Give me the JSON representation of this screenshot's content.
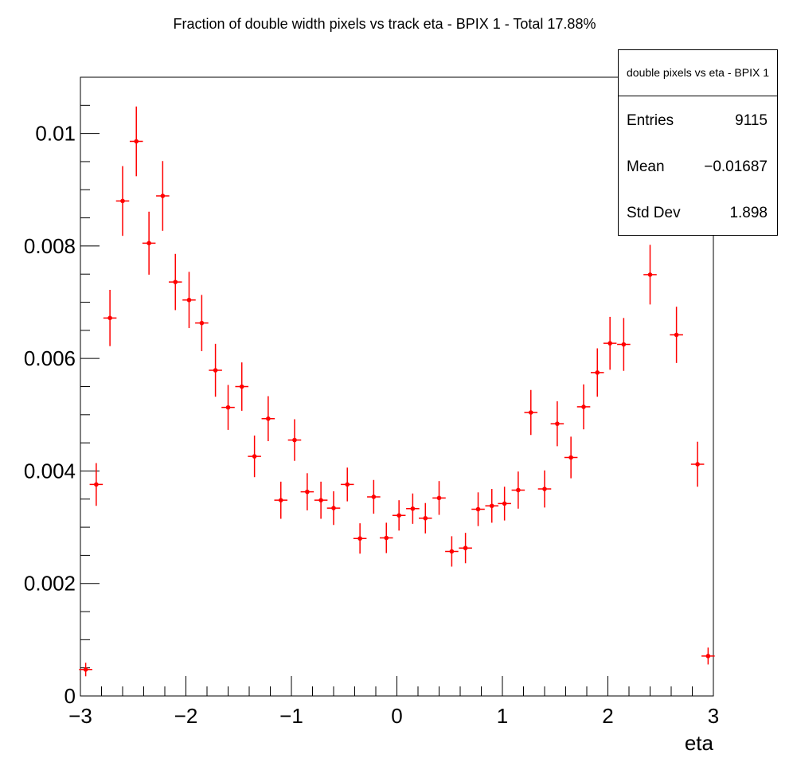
{
  "chart_data": {
    "type": "scatter",
    "title": "Fraction of double width pixels vs track eta - BPIX 1 - Total 17.88%",
    "xlabel": "eta",
    "ylabel": "",
    "xlim": [
      -3,
      3
    ],
    "ylim": [
      0,
      0.011
    ],
    "x_ticks": [
      "−3",
      "−2",
      "−1",
      "0",
      "1",
      "2",
      "3"
    ],
    "y_ticks": [
      "0",
      "0.002",
      "0.004",
      "0.006",
      "0.008",
      "0.01"
    ],
    "series": [
      {
        "color": "#ff0000",
        "points": [
          {
            "x": -2.95,
            "y": 0.00047,
            "err": 0.00012
          },
          {
            "x": -2.85,
            "y": 0.00376,
            "err": 0.00038
          },
          {
            "x": -2.72,
            "y": 0.00672,
            "err": 0.0005
          },
          {
            "x": -2.6,
            "y": 0.0088,
            "err": 0.00062
          },
          {
            "x": -2.47,
            "y": 0.00986,
            "err": 0.00062
          },
          {
            "x": -2.35,
            "y": 0.00805,
            "err": 0.00056
          },
          {
            "x": -2.22,
            "y": 0.00889,
            "err": 0.00062
          },
          {
            "x": -2.1,
            "y": 0.00736,
            "err": 0.0005
          },
          {
            "x": -1.97,
            "y": 0.00704,
            "err": 0.0005
          },
          {
            "x": -1.85,
            "y": 0.00663,
            "err": 0.0005
          },
          {
            "x": -1.72,
            "y": 0.00579,
            "err": 0.00047
          },
          {
            "x": -1.6,
            "y": 0.00513,
            "err": 0.0004
          },
          {
            "x": -1.47,
            "y": 0.0055,
            "err": 0.00043
          },
          {
            "x": -1.35,
            "y": 0.00426,
            "err": 0.00037
          },
          {
            "x": -1.22,
            "y": 0.00493,
            "err": 0.0004
          },
          {
            "x": -1.1,
            "y": 0.00348,
            "err": 0.00033
          },
          {
            "x": -0.97,
            "y": 0.00455,
            "err": 0.00037
          },
          {
            "x": -0.85,
            "y": 0.00363,
            "err": 0.00033
          },
          {
            "x": -0.72,
            "y": 0.00348,
            "err": 0.00033
          },
          {
            "x": -0.6,
            "y": 0.00334,
            "err": 0.0003
          },
          {
            "x": -0.47,
            "y": 0.00376,
            "err": 0.0003
          },
          {
            "x": -0.35,
            "y": 0.0028,
            "err": 0.00027
          },
          {
            "x": -0.22,
            "y": 0.00354,
            "err": 0.0003
          },
          {
            "x": -0.1,
            "y": 0.00281,
            "err": 0.00027
          },
          {
            "x": 0.02,
            "y": 0.00321,
            "err": 0.00027
          },
          {
            "x": 0.15,
            "y": 0.00333,
            "err": 0.00027
          },
          {
            "x": 0.27,
            "y": 0.00316,
            "err": 0.00027
          },
          {
            "x": 0.4,
            "y": 0.00352,
            "err": 0.0003
          },
          {
            "x": 0.52,
            "y": 0.00257,
            "err": 0.00027
          },
          {
            "x": 0.65,
            "y": 0.00263,
            "err": 0.00027
          },
          {
            "x": 0.77,
            "y": 0.00332,
            "err": 0.0003
          },
          {
            "x": 0.9,
            "y": 0.00338,
            "err": 0.0003
          },
          {
            "x": 1.02,
            "y": 0.00342,
            "err": 0.0003
          },
          {
            "x": 1.15,
            "y": 0.00366,
            "err": 0.00033
          },
          {
            "x": 1.27,
            "y": 0.00504,
            "err": 0.0004
          },
          {
            "x": 1.4,
            "y": 0.00368,
            "err": 0.00033
          },
          {
            "x": 1.52,
            "y": 0.00484,
            "err": 0.0004
          },
          {
            "x": 1.65,
            "y": 0.00424,
            "err": 0.00037
          },
          {
            "x": 1.77,
            "y": 0.00514,
            "err": 0.0004
          },
          {
            "x": 1.9,
            "y": 0.00575,
            "err": 0.00043
          },
          {
            "x": 2.02,
            "y": 0.00627,
            "err": 0.00047
          },
          {
            "x": 2.15,
            "y": 0.00625,
            "err": 0.00047
          },
          {
            "x": 2.27,
            "y": 0.009,
            "err": 0.0006
          },
          {
            "x": 2.4,
            "y": 0.00749,
            "err": 0.00053
          },
          {
            "x": 2.65,
            "y": 0.00642,
            "err": 0.0005
          },
          {
            "x": 2.85,
            "y": 0.00412,
            "err": 0.0004
          },
          {
            "x": 2.95,
            "y": 0.00071,
            "err": 0.00015
          }
        ]
      }
    ],
    "grid": false,
    "legend": "none"
  },
  "stats": {
    "title": "double pixels vs eta - BPIX 1",
    "rows": [
      {
        "label": "Entries",
        "value": "9115"
      },
      {
        "label": "Mean",
        "value": "−0.01687"
      },
      {
        "label": "Std Dev",
        "value": "1.898"
      }
    ]
  }
}
